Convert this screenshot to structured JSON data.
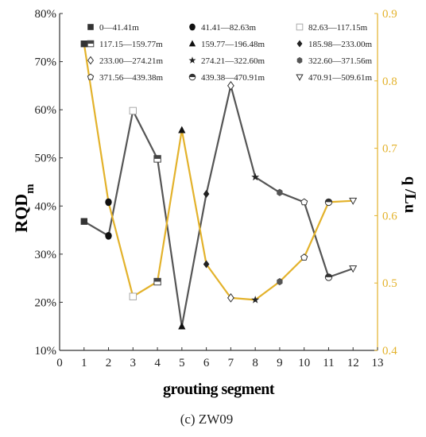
{
  "caption": "(c) ZW09",
  "chart_data": {
    "type": "line",
    "xlabel": "grouting segment",
    "ylabel_left_main": "RQD",
    "ylabel_left_sub": "m",
    "ylabel_right": "q /Lu",
    "xlim": [
      0,
      13
    ],
    "x_ticks": [
      0,
      1,
      2,
      3,
      4,
      5,
      6,
      7,
      8,
      9,
      10,
      11,
      12,
      13
    ],
    "y_left_lim": [
      10,
      80
    ],
    "y_left_ticks": [
      "10%",
      "20%",
      "30%",
      "40%",
      "50%",
      "60%",
      "70%",
      "80%"
    ],
    "y_right_lim": [
      0.4,
      0.9
    ],
    "y_right_ticks": [
      "0.4",
      "0.5",
      "0.6",
      "0.7",
      "0.8",
      "0.9"
    ],
    "x": [
      1,
      2,
      3,
      4,
      5,
      6,
      7,
      8,
      9,
      10,
      11,
      12
    ],
    "series": [
      {
        "axis": "left",
        "color": "#555555",
        "values": [
          36.8,
          33.8,
          59.8,
          49.8,
          15.0,
          42.5,
          65.0,
          46.0,
          42.8,
          40.8,
          25.2,
          27.0
        ]
      },
      {
        "axis": "right",
        "color": "#E3B22B",
        "values": [
          0.855,
          0.62,
          0.48,
          0.502,
          0.727,
          0.528,
          0.478,
          0.475,
          0.502,
          0.538,
          0.62,
          0.622
        ]
      }
    ],
    "legend": [
      {
        "label": "0—41.41m",
        "marker": "square-filled"
      },
      {
        "label": "41.41—82.63m",
        "marker": "circle-filled"
      },
      {
        "label": "82.63—117.15m",
        "marker": "square-open"
      },
      {
        "label": "117.15—159.77m",
        "marker": "square-half"
      },
      {
        "label": "159.77—196.48m",
        "marker": "triangle-filled"
      },
      {
        "label": "185.98—233.00m",
        "marker": "diamond-filled"
      },
      {
        "label": "233.00—274.21m",
        "marker": "diamond-open"
      },
      {
        "label": "274.21—322.60m",
        "marker": "star-filled"
      },
      {
        "label": "322.60—371.56m",
        "marker": "hexagon-filled"
      },
      {
        "label": "371.56—439.38m",
        "marker": "pentagon-open"
      },
      {
        "label": "439.38—470.91m",
        "marker": "circle-half"
      },
      {
        "label": "470.91—509.61m",
        "marker": "triangle-down-open"
      }
    ],
    "legend_placement": "top",
    "grid": false
  }
}
